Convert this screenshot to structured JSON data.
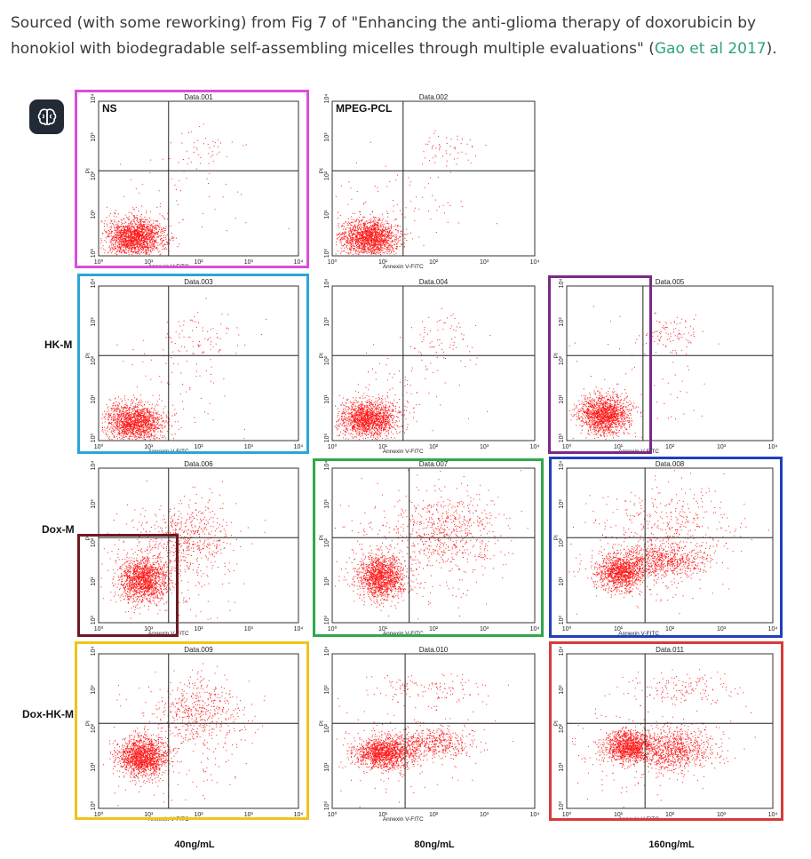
{
  "caption": {
    "text_before": "Sourced (with some reworking) from Fig 7 of \"Enhancing the anti-glioma therapy of doxorubicin by honokiol with biodegradable self-assembling micelles through multiple evaluations\" (",
    "link_text": "Gao et al 2017",
    "text_after": ")."
  },
  "app_icon": "brain-icon",
  "figure": {
    "x_axis_label": "Annexin V-FITC",
    "y_axis_label": "PI",
    "tick_labels": [
      "10⁰",
      "10¹",
      "10²",
      "10³",
      "10⁴"
    ],
    "row_labels": [
      "HK-M",
      "Dox-M",
      "Dox-HK-M"
    ],
    "col_labels": [
      "40ng/mL",
      "80ng/mL",
      "160ng/mL"
    ],
    "panels": [
      {
        "id": "p1",
        "title": "Data.001",
        "tag": "NS",
        "highlight": "#d94fd9"
      },
      {
        "id": "p2",
        "title": "Data.002",
        "tag": "MPEG-PCL",
        "highlight": ""
      },
      {
        "id": "p3",
        "title": "Data.003",
        "tag": "",
        "highlight": "#29a6d9"
      },
      {
        "id": "p4",
        "title": "Data.004",
        "tag": "",
        "highlight": ""
      },
      {
        "id": "p5",
        "title": "Data.005",
        "tag": "",
        "highlight": "#7a2a86"
      },
      {
        "id": "p6",
        "title": "Data.006",
        "tag": "",
        "highlight": "#6e1a20"
      },
      {
        "id": "p7",
        "title": "Data.007",
        "tag": "",
        "highlight": "#2fa84a"
      },
      {
        "id": "p8",
        "title": "Data.008",
        "tag": "",
        "highlight": "#1f3fbf"
      },
      {
        "id": "p9",
        "title": "Data.009",
        "tag": "",
        "highlight": "#f0c419"
      },
      {
        "id": "p10",
        "title": "Data.010",
        "tag": "",
        "highlight": ""
      },
      {
        "id": "p11",
        "title": "Data.011",
        "tag": "",
        "highlight": "#d93a3a"
      }
    ]
  }
}
